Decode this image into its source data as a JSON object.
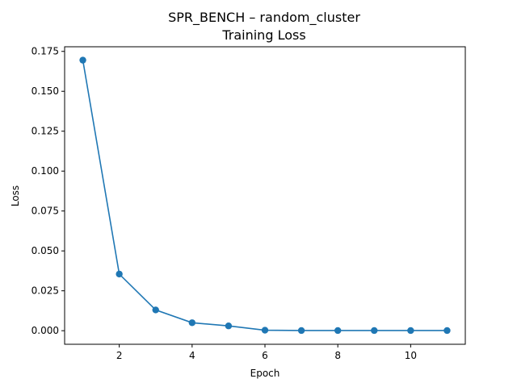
{
  "chart_data": {
    "type": "line",
    "title": [
      "SPR_BENCH – random_cluster",
      "Training Loss"
    ],
    "xlabel": "Epoch",
    "ylabel": "Loss",
    "xlim": [
      0.5,
      11.5
    ],
    "ylim": [
      -0.0085,
      0.1779
    ],
    "xticks": [
      2,
      4,
      6,
      8,
      10
    ],
    "yticks": [
      0.0,
      0.025,
      0.05,
      0.075,
      0.1,
      0.125,
      0.15,
      0.175
    ],
    "ytick_labels": [
      "0.000",
      "0.025",
      "0.050",
      "0.075",
      "0.100",
      "0.125",
      "0.150",
      "0.175"
    ],
    "grid": false,
    "marker": "circle",
    "color": "#1f77b4",
    "series": [
      {
        "x": [
          1,
          2,
          3,
          4,
          5,
          6,
          7,
          8,
          9,
          10,
          11
        ],
        "values": [
          0.1695,
          0.0355,
          0.013,
          0.005,
          0.003,
          0.0003,
          0.0001,
          0.0001,
          0.0001,
          0.0001,
          0.0001
        ]
      }
    ]
  }
}
